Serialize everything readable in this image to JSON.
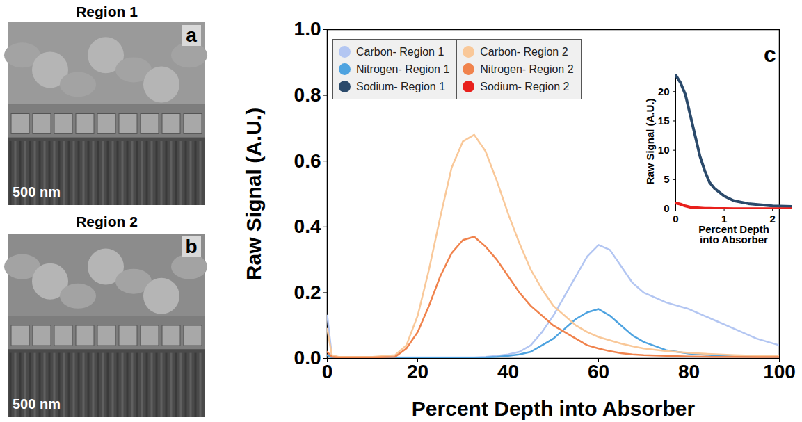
{
  "images": [
    {
      "title": "Region 1",
      "panel_label": "a",
      "scale_bar": "500 nm"
    },
    {
      "title": "Region 2",
      "panel_label": "b",
      "scale_bar": "500 nm"
    }
  ],
  "chart_data": [
    {
      "type": "line",
      "x_label": "Percent Depth into Absorber",
      "y_label": "Raw Signal (A.U.)",
      "x": [
        0,
        1,
        2.5,
        5,
        10,
        15,
        17.5,
        20,
        22.5,
        25,
        27.5,
        30,
        32.5,
        35,
        37.5,
        40,
        42.5,
        45,
        47.5,
        50,
        52.5,
        55,
        57.5,
        60,
        62.5,
        65,
        67.5,
        70,
        75,
        80,
        85,
        90,
        95,
        100
      ],
      "series": [
        {
          "name": "Carbon- Region 1",
          "color": "#b3c6f2",
          "values": [
            0.13,
            0.01,
            0.003,
            0.003,
            0.003,
            0.003,
            0.003,
            0.003,
            0.003,
            0.003,
            0.003,
            0.003,
            0.003,
            0.005,
            0.008,
            0.012,
            0.02,
            0.04,
            0.08,
            0.13,
            0.19,
            0.25,
            0.31,
            0.345,
            0.33,
            0.28,
            0.23,
            0.2,
            0.17,
            0.15,
            0.12,
            0.09,
            0.06,
            0.04
          ]
        },
        {
          "name": "Nitrogen- Region 1",
          "color": "#4ea3e0",
          "values": [
            0.01,
            0.003,
            0.002,
            0.002,
            0.002,
            0.002,
            0.002,
            0.002,
            0.002,
            0.002,
            0.002,
            0.002,
            0.002,
            0.003,
            0.005,
            0.008,
            0.012,
            0.02,
            0.04,
            0.06,
            0.09,
            0.12,
            0.14,
            0.15,
            0.13,
            0.1,
            0.07,
            0.05,
            0.025,
            0.015,
            0.01,
            0.008,
            0.006,
            0.005
          ]
        },
        {
          "name": "Carbon- Region 2",
          "color": "#f9c899",
          "values": [
            0.09,
            0.01,
            0.005,
            0.005,
            0.005,
            0.01,
            0.04,
            0.13,
            0.27,
            0.43,
            0.58,
            0.66,
            0.68,
            0.63,
            0.54,
            0.44,
            0.35,
            0.27,
            0.21,
            0.16,
            0.13,
            0.1,
            0.08,
            0.065,
            0.055,
            0.045,
            0.037,
            0.03,
            0.022,
            0.017,
            0.013,
            0.01,
            0.008,
            0.007
          ]
        },
        {
          "name": "Nitrogen- Region 2",
          "color": "#f0834d",
          "values": [
            0.02,
            0.005,
            0.003,
            0.003,
            0.003,
            0.005,
            0.03,
            0.08,
            0.16,
            0.25,
            0.32,
            0.36,
            0.37,
            0.34,
            0.3,
            0.25,
            0.2,
            0.16,
            0.13,
            0.1,
            0.08,
            0.06,
            0.04,
            0.03,
            0.022,
            0.016,
            0.012,
            0.01,
            0.008,
            0.006,
            0.005,
            0.005,
            0.004,
            0.004
          ]
        }
      ],
      "xlim": [
        0,
        100
      ],
      "xticks": [
        0,
        20,
        40,
        60,
        80,
        100
      ],
      "ylim": [
        0,
        1
      ],
      "yticks": [
        {
          "value": 0,
          "label": "0.0"
        },
        {
          "value": 0.2,
          "label": "0.2"
        },
        {
          "value": 0.4,
          "label": "0.4"
        },
        {
          "value": 0.6,
          "label": "0.6"
        },
        {
          "value": 0.8,
          "label": "0.8"
        },
        {
          "value": 1,
          "label": "1.0"
        }
      ],
      "legend": "top-left"
    },
    {
      "type": "line",
      "panel_label": "c",
      "x_label": "Percent Depth into Absorber",
      "y_label": "Raw Signal (A.U.)",
      "x": [
        0,
        0.1,
        0.2,
        0.3,
        0.4,
        0.5,
        0.6,
        0.7,
        0.8,
        1,
        1.2,
        1.5,
        2,
        2.4
      ],
      "series": [
        {
          "name": "Sodium- Region 1",
          "color": "#2b4a6b",
          "values": [
            22.8,
            21.5,
            19.5,
            16,
            12.5,
            9,
            6.5,
            4.5,
            3.5,
            2.2,
            1.4,
            0.9,
            0.5,
            0.4
          ]
        },
        {
          "name": "Sodium- Region 2",
          "color": "#e8201c",
          "values": [
            1,
            0.8,
            0.5,
            0.3,
            0.2,
            0.15,
            0.1,
            0.08,
            0.06,
            0.05,
            0.04,
            0.03,
            0.02,
            0.02
          ]
        }
      ],
      "xlim": [
        0,
        2.4
      ],
      "xticks": [
        0,
        1,
        2
      ],
      "ylim": [
        0,
        23
      ],
      "yticks": [
        0,
        5,
        10,
        15,
        20
      ]
    }
  ]
}
